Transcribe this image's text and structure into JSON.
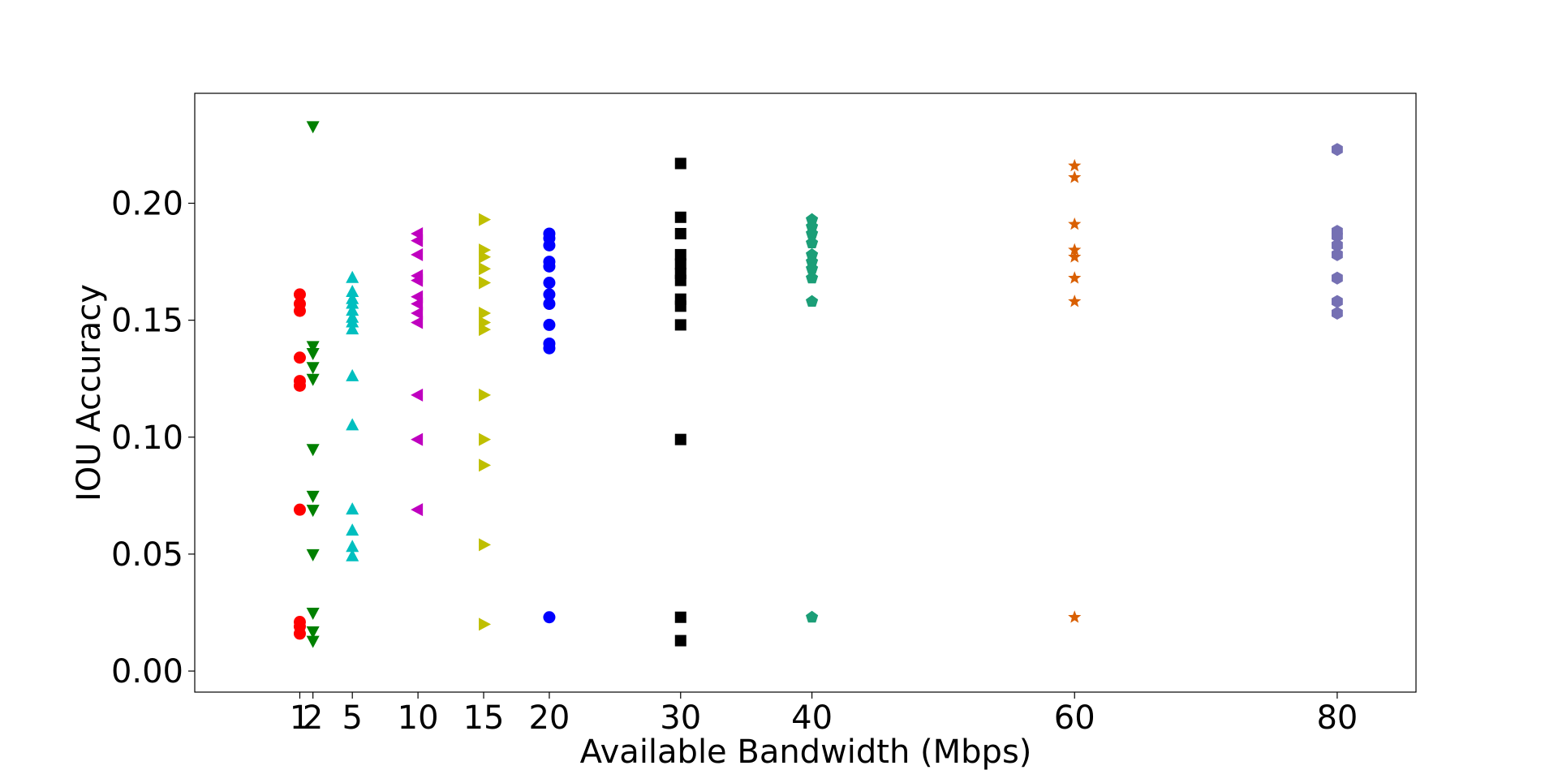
{
  "chart_data": {
    "type": "scatter",
    "title": "",
    "xlabel": "Available Bandwidth (Mbps)",
    "ylabel": "IOU Accuracy",
    "xlim": [
      -7,
      86
    ],
    "ylim": [
      -0.009,
      0.247
    ],
    "x_ticks": [
      1,
      2,
      5,
      10,
      15,
      20,
      30,
      40,
      60,
      80
    ],
    "x_tick_labels": [
      "1",
      "2",
      "5",
      "10",
      "15",
      "20",
      "30",
      "40",
      "60",
      "80"
    ],
    "y_ticks": [
      0.0,
      0.05,
      0.1,
      0.15,
      0.2
    ],
    "y_tick_labels": [
      "0.00",
      "0.05",
      "0.10",
      "0.15",
      "0.20"
    ],
    "grid": false,
    "legend": "none",
    "series": [
      {
        "x": 1,
        "marker": "circle",
        "color": "#ff0000",
        "values": [
          0.161,
          0.157,
          0.154,
          0.134,
          0.124,
          0.122,
          0.069,
          0.021,
          0.019,
          0.016
        ]
      },
      {
        "x": 2,
        "marker": "triangle-down",
        "color": "#008000",
        "values": [
          0.233,
          0.139,
          0.136,
          0.13,
          0.125,
          0.095,
          0.075,
          0.069,
          0.05,
          0.025,
          0.017,
          0.013
        ]
      },
      {
        "x": 5,
        "marker": "triangle-up",
        "color": "#00bfbf",
        "values": [
          0.168,
          0.162,
          0.159,
          0.157,
          0.154,
          0.151,
          0.149,
          0.146,
          0.126,
          0.105,
          0.069,
          0.06,
          0.053,
          0.049
        ]
      },
      {
        "x": 10,
        "marker": "triangle-left",
        "color": "#bf00bf",
        "values": [
          0.187,
          0.184,
          0.178,
          0.169,
          0.167,
          0.16,
          0.157,
          0.153,
          0.149,
          0.118,
          0.099,
          0.069
        ]
      },
      {
        "x": 15,
        "marker": "triangle-right",
        "color": "#bfbf00",
        "values": [
          0.193,
          0.18,
          0.177,
          0.172,
          0.166,
          0.153,
          0.149,
          0.146,
          0.118,
          0.099,
          0.088,
          0.054,
          0.02
        ]
      },
      {
        "x": 20,
        "marker": "circle",
        "color": "#0000ff",
        "values": [
          0.187,
          0.185,
          0.182,
          0.175,
          0.173,
          0.166,
          0.161,
          0.157,
          0.148,
          0.14,
          0.138,
          0.023
        ]
      },
      {
        "x": 30,
        "marker": "square",
        "color": "#000000",
        "values": [
          0.217,
          0.194,
          0.187,
          0.178,
          0.174,
          0.17,
          0.167,
          0.159,
          0.156,
          0.148,
          0.099,
          0.023,
          0.013
        ]
      },
      {
        "x": 40,
        "marker": "pentagon",
        "color": "#1b9e77",
        "values": [
          0.193,
          0.19,
          0.187,
          0.183,
          0.178,
          0.175,
          0.172,
          0.168,
          0.158,
          0.023
        ]
      },
      {
        "x": 60,
        "marker": "star",
        "color": "#d95f02",
        "values": [
          0.216,
          0.211,
          0.191,
          0.18,
          0.177,
          0.168,
          0.158,
          0.023
        ]
      },
      {
        "x": 80,
        "marker": "hexagon",
        "color": "#7570b3",
        "values": [
          0.223,
          0.188,
          0.186,
          0.182,
          0.178,
          0.168,
          0.158,
          0.153
        ]
      }
    ]
  }
}
